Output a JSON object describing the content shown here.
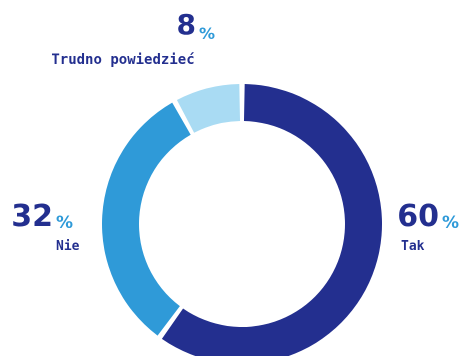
{
  "chart_data": {
    "type": "pie",
    "donut": true,
    "categories": [
      "Tak",
      "Nie",
      "Trudno powiedzieć"
    ],
    "values": [
      60,
      32,
      8
    ],
    "unit": "%",
    "data_labels": [
      "60",
      "32",
      "8"
    ],
    "colors": [
      "#232f8f",
      "#2f9ad8",
      "#a9dbf3"
    ],
    "title": "",
    "legend": "none"
  }
}
